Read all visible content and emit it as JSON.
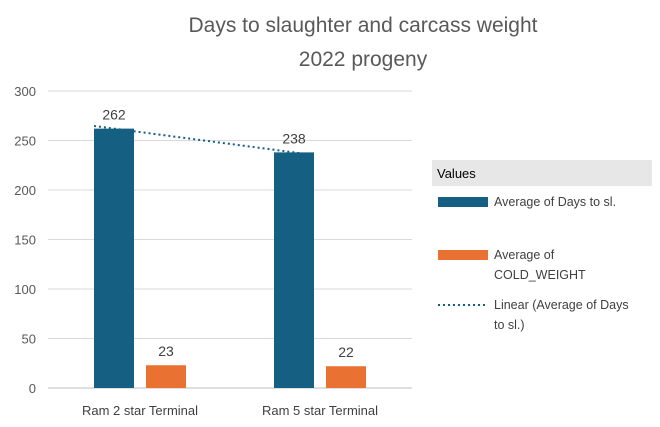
{
  "chart_data": {
    "type": "bar",
    "title": [
      "Days to slaughter and carcass weight",
      "2022 progeny"
    ],
    "categories": [
      "Ram 2 star Terminal",
      "Ram 5 star Terminal"
    ],
    "series": [
      {
        "name": "Average of Days to sl.",
        "values": [
          262,
          238
        ],
        "color": "#156082"
      },
      {
        "name": "Average of COLD_WEIGHT",
        "values": [
          23,
          22
        ],
        "color": "#E97132"
      }
    ],
    "trendline": {
      "name": "Linear (Average of Days to sl.)",
      "series_index": 0,
      "type": "linear",
      "color": "#156082",
      "style": "dotted"
    },
    "ylim": [
      0,
      300
    ],
    "yticks": [
      0,
      50,
      100,
      150,
      200,
      250,
      300
    ],
    "grid": true,
    "legend": {
      "title": "Values",
      "placement": "right",
      "entries": [
        {
          "lines": [
            "Average of Days to sl."
          ]
        },
        {
          "lines": [
            "Average of",
            "COLD_WEIGHT"
          ]
        },
        {
          "lines": [
            "Linear (Average of Days",
            "to sl.)"
          ]
        }
      ]
    }
  }
}
